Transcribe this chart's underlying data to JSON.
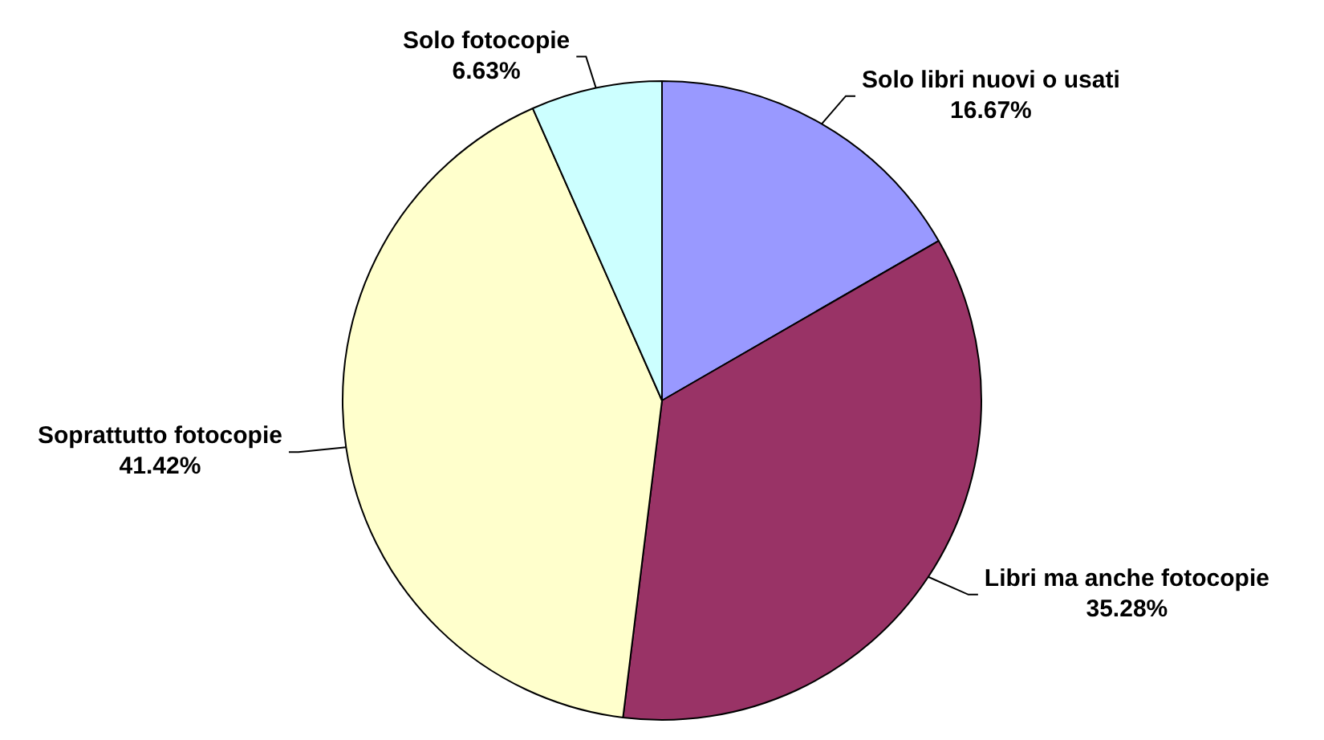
{
  "chart_data": {
    "type": "pie",
    "categories": [
      "Solo libri nuovi o usati",
      "Libri ma anche fotocopie",
      "Soprattutto fotocopie",
      "Solo fotocopie"
    ],
    "values": [
      16.67,
      35.28,
      41.42,
      6.63
    ],
    "value_labels": [
      "16.67%",
      "35.28%",
      "41.42%",
      "6.63%"
    ],
    "colors": [
      "#9999ff",
      "#993366",
      "#ffffcc",
      "#ccffff"
    ],
    "legend": false
  }
}
